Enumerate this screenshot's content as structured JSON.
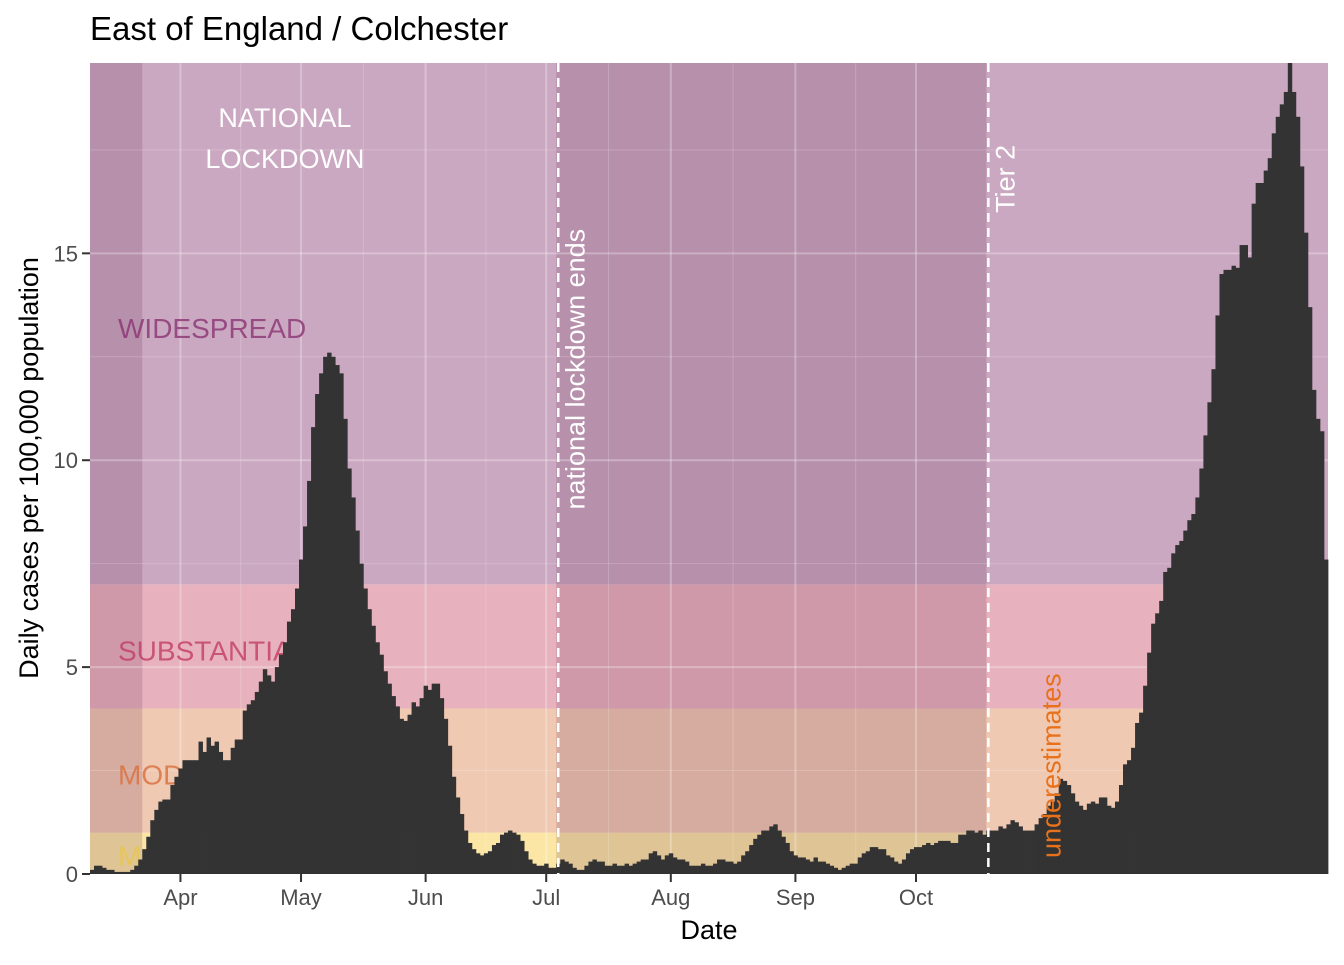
{
  "chart_data": {
    "type": "bar",
    "title": "East of England / Colchester",
    "xlabel": "Date",
    "ylabel": "Daily cases per 100,000 population",
    "ylim": [
      0,
      19.6
    ],
    "x_start": "2020-03-10",
    "y_ticks": [
      0,
      5,
      10,
      15
    ],
    "y_tick_labels": [
      "0",
      "5",
      "10",
      "15"
    ],
    "x_ticks": [
      {
        "date": "2020-04-01",
        "label": "Apr"
      },
      {
        "date": "2020-05-01",
        "label": "May"
      },
      {
        "date": "2020-06-01",
        "label": "Jun"
      },
      {
        "date": "2020-07-01",
        "label": "Jul"
      },
      {
        "date": "2020-08-01",
        "label": "Aug"
      },
      {
        "date": "2020-09-01",
        "label": "Sep"
      },
      {
        "date": "2020-10-01",
        "label": "Oct"
      }
    ],
    "bar_color": "#333333",
    "values": [
      0.1,
      0.2,
      0.2,
      0.15,
      0.1,
      0.1,
      0.05,
      0.05,
      0.05,
      0.05,
      0.1,
      0.2,
      0.35,
      0.6,
      0.9,
      1.3,
      1.55,
      1.75,
      1.8,
      1.8,
      2.15,
      2.35,
      2.55,
      2.75,
      2.75,
      2.75,
      2.75,
      3.2,
      2.95,
      3.3,
      3.1,
      3.2,
      2.95,
      2.75,
      2.75,
      3.05,
      3.25,
      3.25,
      3.95,
      4.1,
      4.2,
      4.4,
      4.65,
      4.95,
      4.8,
      4.65,
      5.0,
      5.3,
      5.6,
      6.1,
      6.4,
      6.9,
      7.6,
      8.4,
      9.5,
      10.8,
      11.6,
      12.1,
      12.5,
      12.6,
      12.5,
      12.3,
      12.1,
      11.0,
      9.8,
      9.1,
      8.3,
      7.5,
      6.9,
      6.4,
      6.0,
      5.6,
      5.3,
      4.9,
      4.6,
      4.3,
      4.05,
      3.75,
      3.7,
      3.85,
      4.15,
      4.05,
      4.25,
      4.55,
      4.45,
      4.6,
      4.6,
      4.25,
      3.75,
      3.1,
      2.35,
      1.85,
      1.45,
      1.05,
      0.75,
      0.6,
      0.5,
      0.45,
      0.5,
      0.55,
      0.7,
      0.75,
      0.95,
      1.0,
      1.05,
      1.0,
      0.95,
      0.8,
      0.55,
      0.35,
      0.25,
      0.2,
      0.2,
      0.25,
      0.15,
      0.15,
      0.25,
      0.35,
      0.3,
      0.25,
      0.15,
      0.1,
      0.1,
      0.2,
      0.3,
      0.35,
      0.3,
      0.3,
      0.2,
      0.2,
      0.25,
      0.2,
      0.2,
      0.25,
      0.2,
      0.25,
      0.3,
      0.35,
      0.35,
      0.5,
      0.55,
      0.45,
      0.35,
      0.45,
      0.5,
      0.4,
      0.35,
      0.35,
      0.3,
      0.2,
      0.2,
      0.2,
      0.25,
      0.2,
      0.2,
      0.25,
      0.35,
      0.35,
      0.3,
      0.3,
      0.25,
      0.3,
      0.45,
      0.55,
      0.7,
      0.85,
      0.95,
      1.05,
      1.05,
      1.15,
      1.2,
      1.05,
      0.9,
      0.75,
      0.55,
      0.45,
      0.4,
      0.4,
      0.35,
      0.3,
      0.4,
      0.3,
      0.3,
      0.25,
      0.2,
      0.15,
      0.1,
      0.15,
      0.2,
      0.25,
      0.25,
      0.4,
      0.5,
      0.55,
      0.65,
      0.65,
      0.6,
      0.6,
      0.45,
      0.4,
      0.3,
      0.25,
      0.35,
      0.5,
      0.6,
      0.65,
      0.65,
      0.7,
      0.75,
      0.7,
      0.75,
      0.8,
      0.8,
      0.8,
      0.75,
      0.75,
      0.95,
      0.95,
      1.05,
      1.05,
      1.0,
      1.05,
      0.95,
      1.05,
      1.05,
      1.05,
      1.15,
      1.1,
      1.2,
      1.3,
      1.25,
      1.15,
      1.05,
      1.05,
      1.05,
      1.2,
      1.35,
      1.45,
      1.65,
      1.75,
      1.95,
      2.3,
      2.25,
      2.15,
      1.95,
      1.75,
      1.65,
      1.55,
      1.7,
      1.75,
      1.7,
      1.85,
      1.85,
      1.65,
      1.6,
      1.75,
      2.15,
      2.65,
      2.75,
      3.05,
      3.65,
      3.9,
      4.55,
      5.35,
      6.05,
      6.3,
      6.6,
      7.3,
      7.4,
      7.75,
      7.95,
      8.05,
      8.3,
      8.55,
      8.7,
      9.1,
      9.8,
      10.6,
      11.4,
      12.2,
      13.5,
      14.5,
      14.6,
      14.6,
      14.7,
      14.65,
      15.2,
      15.2,
      14.9,
      16.2,
      16.7,
      16.7,
      17.0,
      17.3,
      17.9,
      18.3,
      18.6,
      18.9,
      19.6,
      18.9,
      18.3,
      17.1,
      15.5,
      13.7,
      11.7,
      11.0,
      10.7,
      7.6
    ],
    "bands": [
      {
        "name": "M",
        "y0": 0,
        "y1": 1,
        "color": "#fbe6a5",
        "label_color": "#e8c74a"
      },
      {
        "name": "MOD",
        "y0": 1,
        "y1": 4,
        "color": "#f0c9b3",
        "label_color": "#d86f3c"
      },
      {
        "name": "SUBSTANTIA",
        "y0": 4,
        "y1": 7,
        "color": "#e7b2bd",
        "label_color": "#c23c63"
      },
      {
        "name": "WIDESPREAD",
        "y0": 7,
        "y1": 19.6,
        "color": "#cba8c1",
        "label_color": "#8a3373"
      }
    ],
    "band_labels": [
      {
        "band": "WIDESPREAD",
        "y": 13.2
      },
      {
        "band": "SUBSTANTIA",
        "y": 5.4
      },
      {
        "band": "MOD",
        "y": 2.4
      },
      {
        "band": "M",
        "y": 0.45
      }
    ],
    "shaded_periods": [
      {
        "start": "2020-03-10",
        "end": "2020-03-23"
      },
      {
        "start": "2020-07-04",
        "end": "2020-10-19"
      }
    ],
    "vlines": [
      {
        "date": "2020-07-04",
        "label": "national lockdown ends",
        "label_y": 12.2
      },
      {
        "date": "2020-10-19",
        "label": "Tier 2",
        "label_y": 16.8
      }
    ],
    "annotations": [
      {
        "text": "NATIONAL",
        "date": "2020-04-27",
        "y": 18.3
      },
      {
        "text": "LOCKDOWN",
        "date": "2020-04-27",
        "y": 17.3
      }
    ],
    "right_note": {
      "text": "underestimates",
      "color": "#e8721c",
      "date": "2020-10-27"
    }
  }
}
